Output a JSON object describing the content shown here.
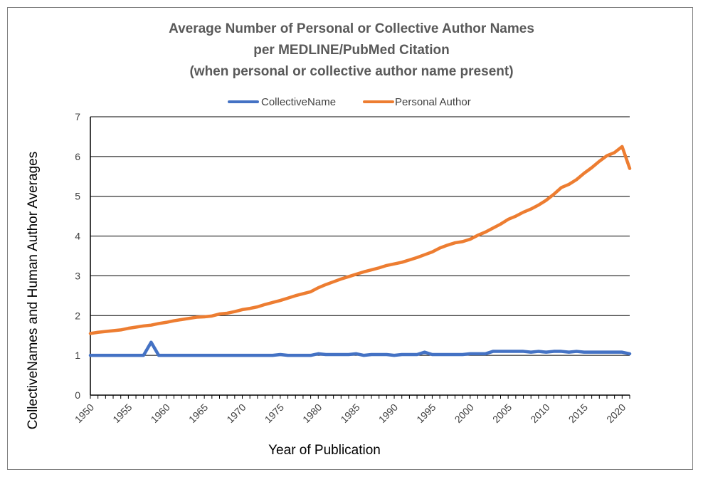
{
  "chart_data": {
    "type": "line",
    "title_lines": [
      "Average Number of Personal or Collective Author Names",
      "per MEDLINE/PubMed Citation",
      "(when personal or collective author name present)"
    ],
    "xlabel": "Year of Publication",
    "ylabel": "CollectiveNames  and  Human  Author  Averages",
    "xlim": [
      1950,
      2021
    ],
    "ylim": [
      0,
      7
    ],
    "x_ticks": [
      1950,
      1955,
      1960,
      1965,
      1970,
      1975,
      1980,
      1985,
      1990,
      1995,
      2000,
      2005,
      2010,
      2015,
      2020
    ],
    "y_ticks": [
      0,
      1,
      2,
      3,
      4,
      5,
      6,
      7
    ],
    "grid": "horizontal",
    "legend_position": "top",
    "x": [
      1950,
      1951,
      1952,
      1953,
      1954,
      1955,
      1956,
      1957,
      1958,
      1959,
      1960,
      1961,
      1962,
      1963,
      1964,
      1965,
      1966,
      1967,
      1968,
      1969,
      1970,
      1971,
      1972,
      1973,
      1974,
      1975,
      1976,
      1977,
      1978,
      1979,
      1980,
      1981,
      1982,
      1983,
      1984,
      1985,
      1986,
      1987,
      1988,
      1989,
      1990,
      1991,
      1992,
      1993,
      1994,
      1995,
      1996,
      1997,
      1998,
      1999,
      2000,
      2001,
      2002,
      2003,
      2004,
      2005,
      2006,
      2007,
      2008,
      2009,
      2010,
      2011,
      2012,
      2013,
      2014,
      2015,
      2016,
      2017,
      2018,
      2019,
      2020,
      2021
    ],
    "series": [
      {
        "name": "CollectiveName",
        "color": "#4472c4",
        "values": [
          1,
          1,
          1,
          1,
          1,
          1,
          1,
          1,
          1.33,
          1,
          1,
          1,
          1,
          1,
          1,
          1,
          1,
          1,
          1,
          1,
          1,
          1,
          1,
          1,
          1,
          1.02,
          1,
          1,
          1,
          1,
          1.04,
          1.02,
          1.02,
          1.02,
          1.02,
          1.04,
          1,
          1.02,
          1.02,
          1.02,
          1,
          1.02,
          1.02,
          1.02,
          1.08,
          1.02,
          1.02,
          1.02,
          1.02,
          1.02,
          1.04,
          1.04,
          1.04,
          1.1,
          1.1,
          1.1,
          1.1,
          1.1,
          1.08,
          1.1,
          1.08,
          1.1,
          1.1,
          1.08,
          1.1,
          1.08,
          1.08,
          1.08,
          1.08,
          1.08,
          1.08,
          1.04
        ]
      },
      {
        "name": "Personal Author",
        "color": "#ed7d31",
        "values": [
          1.55,
          1.58,
          1.6,
          1.62,
          1.64,
          1.68,
          1.71,
          1.74,
          1.76,
          1.8,
          1.83,
          1.87,
          1.9,
          1.93,
          1.96,
          1.97,
          1.99,
          2.04,
          2.06,
          2.1,
          2.15,
          2.18,
          2.22,
          2.28,
          2.33,
          2.38,
          2.44,
          2.5,
          2.55,
          2.6,
          2.7,
          2.78,
          2.85,
          2.92,
          2.98,
          3.04,
          3.1,
          3.15,
          3.2,
          3.26,
          3.3,
          3.34,
          3.4,
          3.46,
          3.53,
          3.6,
          3.7,
          3.77,
          3.83,
          3.86,
          3.92,
          4.02,
          4.1,
          4.2,
          4.3,
          4.42,
          4.5,
          4.6,
          4.68,
          4.78,
          4.9,
          5.05,
          5.22,
          5.3,
          5.42,
          5.58,
          5.72,
          5.88,
          6.02,
          6.1,
          6.25,
          5.7
        ]
      }
    ]
  }
}
